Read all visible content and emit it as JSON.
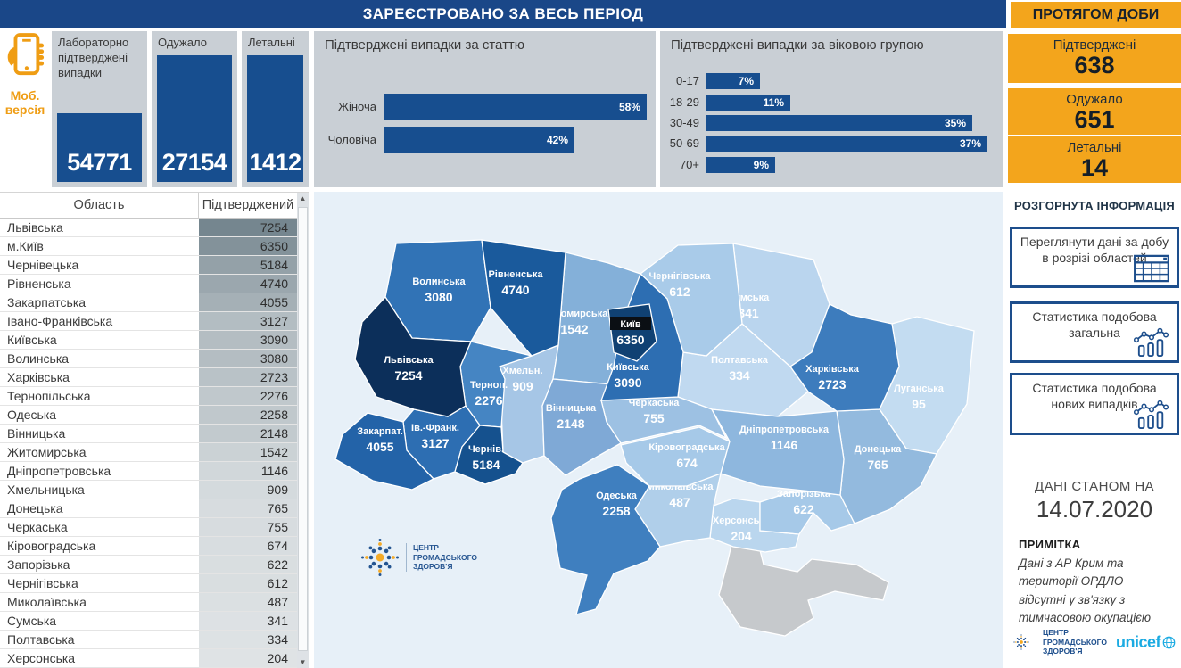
{
  "colors": {
    "header_blue": "#1a4788",
    "bar_blue": "#174e8f",
    "panel_gray": "#c9cfd5",
    "orange": "#f3a51c",
    "map_bg": "#e7f0f8",
    "navy_border": "#1d4e8c",
    "unicef_blue": "#1cabe2",
    "crimea_gray": "#c6c9cc"
  },
  "header": {
    "main_title": "ЗАРЕЄСТРОВАНО ЗА ВЕСЬ ПЕРІОД",
    "daily_title": "ПРОТЯГОМ ДОБИ"
  },
  "mobile": {
    "label": "Моб. версія"
  },
  "totals": [
    {
      "label": "Лабораторно підтверджені випадки",
      "value": "54771"
    },
    {
      "label": "Одужало",
      "value": "27154"
    },
    {
      "label": "Летальні",
      "value": "1412"
    }
  ],
  "daily": [
    {
      "label": "Підтверджені",
      "value": "638"
    },
    {
      "label": "Одужало",
      "value": "651"
    },
    {
      "label": "Летальні",
      "value": "14"
    }
  ],
  "chart_data": [
    {
      "type": "bar",
      "orientation": "horizontal",
      "title": "Підтверджені випадки за статтю",
      "categories": [
        "Жіноча",
        "Чоловіча"
      ],
      "values": [
        58,
        42
      ],
      "unit": "%",
      "xlim": [
        0,
        75
      ],
      "grid": false,
      "legend": "none"
    },
    {
      "type": "bar",
      "orientation": "horizontal",
      "title": "Підтверджені випадки за віковою групою",
      "categories": [
        "0-17",
        "18-29",
        "30-49",
        "50-69",
        "70+"
      ],
      "values": [
        7,
        11,
        35,
        37,
        9
      ],
      "unit": "%",
      "xlim": [
        0,
        45
      ],
      "grid": false,
      "legend": "none"
    },
    {
      "type": "table",
      "columns": [
        "Область",
        "Підтверджений"
      ],
      "rows": [
        [
          "Львівська",
          7254
        ],
        [
          "м.Київ",
          6350
        ],
        [
          "Чернівецька",
          5184
        ],
        [
          "Рівненська",
          4740
        ],
        [
          "Закарпатська",
          4055
        ],
        [
          "Івано-Франківська",
          3127
        ],
        [
          "Київська",
          3090
        ],
        [
          "Волинська",
          3080
        ],
        [
          "Харківська",
          2723
        ],
        [
          "Тернопільська",
          2276
        ],
        [
          "Одеська",
          2258
        ],
        [
          "Вінницька",
          2148
        ],
        [
          "Житомирська",
          1542
        ],
        [
          "Дніпропетровська",
          1146
        ],
        [
          "Хмельницька",
          909
        ],
        [
          "Донецька",
          765
        ],
        [
          "Черкаська",
          755
        ],
        [
          "Кіровоградська",
          674
        ],
        [
          "Запорізька",
          622
        ],
        [
          "Чернігівська",
          612
        ],
        [
          "Миколаївська",
          487
        ],
        [
          "Сумська",
          341
        ],
        [
          "Полтавська",
          334
        ],
        [
          "Херсонська",
          204
        ]
      ]
    },
    {
      "type": "heatmap",
      "subtype": "choropleth-map-ukraine",
      "regions": [
        {
          "id": "luhansk",
          "name": "Луганська",
          "value": 95,
          "fill": "#c3dcf1"
        },
        {
          "id": "poltava",
          "name": "Полтавська",
          "value": 334,
          "fill": "#c0d9f0"
        },
        {
          "id": "sumy",
          "name": "Сумська",
          "value": 341,
          "fill": "#bad5ee"
        },
        {
          "id": "kherson",
          "name": "Херсонська",
          "value": 204,
          "fill": "#bad6ee"
        },
        {
          "id": "mykolaiv",
          "name": "Миколаївська",
          "value": 487,
          "fill": "#b0cfea"
        },
        {
          "id": "chernihiv",
          "name": "Чернігівська",
          "value": 612,
          "fill": "#a9cbe9"
        },
        {
          "id": "zaporizhzhia",
          "name": "Запорізька",
          "value": 622,
          "fill": "#a6c9e8"
        },
        {
          "id": "kirovohrad",
          "name": "Кіровоградська",
          "value": 674,
          "fill": "#a6c9e8"
        },
        {
          "id": "khmeln",
          "name": "Хмельн.",
          "value": 909,
          "fill": "#a6c6e6"
        },
        {
          "id": "cherkasy",
          "name": "Черкаська",
          "value": 755,
          "fill": "#9dc1e3"
        },
        {
          "id": "donetsk",
          "name": "Донецька",
          "value": 765,
          "fill": "#93bade"
        },
        {
          "id": "dnipro",
          "name": "Дніпропетровська",
          "value": 1146,
          "fill": "#8eb7de"
        },
        {
          "id": "zhytomyr",
          "name": "Житомирська",
          "value": 1542,
          "fill": "#84b0d9"
        },
        {
          "id": "vinnytsia",
          "name": "Вінницька",
          "value": 2148,
          "fill": "#7fa9d6"
        },
        {
          "id": "ternopil",
          "name": "Терноп.",
          "value": 2276,
          "fill": "#4585c3"
        },
        {
          "id": "odesa",
          "name": "Одеська",
          "value": 2258,
          "fill": "#3f7fbf"
        },
        {
          "id": "kharkiv",
          "name": "Харківська",
          "value": 2723,
          "fill": "#3d7cbd"
        },
        {
          "id": "volyn",
          "name": "Волинська",
          "value": 3080,
          "fill": "#3173b6"
        },
        {
          "id": "kyiv_obl",
          "name": "Київська",
          "value": 3090,
          "fill": "#2d6eb2"
        },
        {
          "id": "ivfrank",
          "name": "Ів.-Франк.",
          "value": 3127,
          "fill": "#2d6eb2"
        },
        {
          "id": "zakarpattia",
          "name": "Закарпат.",
          "value": 4055,
          "fill": "#2363a8"
        },
        {
          "id": "rivne",
          "name": "Рівненська",
          "value": 4740,
          "fill": "#1a5a9c"
        },
        {
          "id": "chernivtsi",
          "name": "Чернів.",
          "value": 5184,
          "fill": "#15518e"
        },
        {
          "id": "lviv",
          "name": "Львівська",
          "value": 7254,
          "fill": "#0c2f5a"
        },
        {
          "id": "kyiv_city",
          "name": "Київ",
          "value": 6350,
          "fill": "#104173"
        }
      ],
      "no_data_region": {
        "id": "crimea",
        "fill": "#c6c9cc"
      }
    }
  ],
  "sidebar": {
    "title": "РОЗГОРНУТА ІНФОРМАЦІЯ",
    "buttons": [
      {
        "label": "Переглянути дані за добу в розрізі областей",
        "icon": "table-icon"
      },
      {
        "label": "Статистика подобова загальна",
        "icon": "chart-icon"
      },
      {
        "label": "Статистика подобова нових випадків",
        "icon": "chart-icon"
      }
    ],
    "data_as_of_label": "ДАНІ СТАНОМ НА",
    "data_as_of_date": "14.07.2020",
    "note_title": "ПРИМІТКА",
    "note_text": "Дані з АР Крим та території ОРДЛО відсутні у зв'язку з тимчасовою окупацією"
  },
  "footer": {
    "org_name_lines": [
      "ЦЕНТР",
      "ГРОМАДСЬКОГО",
      "ЗДОРОВ'Я"
    ],
    "unicef_label": "unicef"
  }
}
